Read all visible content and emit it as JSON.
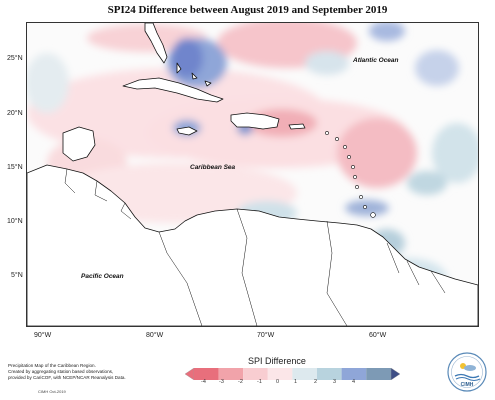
{
  "title": "SPI24 Difference between August 2019 and September 2019",
  "labels": {
    "atlantic": "Atlantic Ocean",
    "caribbean": "Caribbean Sea",
    "pacific": "Pacific Ocean"
  },
  "y_axis": [
    "25°N",
    "20°N",
    "15°N",
    "10°N",
    "5°N"
  ],
  "x_axis": [
    "90°W",
    "80°W",
    "70°W",
    "60°W"
  ],
  "legend": {
    "title": "SPI Difference",
    "ticks": [
      "-4",
      "-3",
      "-2",
      "-1",
      "0",
      "1",
      "2",
      "3",
      "4"
    ],
    "colors": [
      "#e86f7c",
      "#f1a3aa",
      "#f8cdd1",
      "#fbe6e8",
      "#dde9ee",
      "#b8d3de",
      "#8fa6d8",
      "#7d9ab5",
      "#3f4f86"
    ]
  },
  "note": {
    "line1": "Precipitation Map of the Caribbean Region.",
    "line2": "Created by aggregating station based observations,",
    "line3": "provided by CariCOF, with NCEP/NCAR Reanalysis Data."
  },
  "credit": "CIMH Oct-2019",
  "logo_text": "CIMH"
}
